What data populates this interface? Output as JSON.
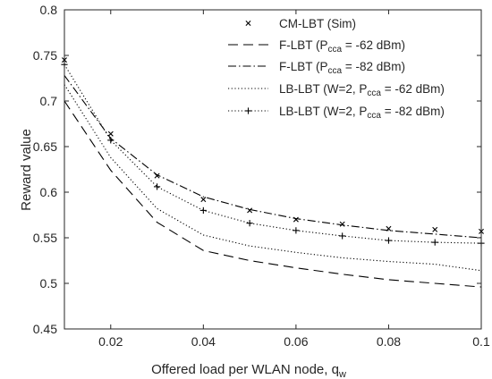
{
  "chart_data": {
    "type": "line",
    "xlabel": "Offered load per WLAN node, q",
    "xlabel_sub": "w",
    "ylabel": "Reward value",
    "xlim": [
      0.01,
      0.1
    ],
    "ylim": [
      0.45,
      0.8
    ],
    "x_ticks": [
      0.02,
      0.04,
      0.06,
      0.08,
      0.1
    ],
    "x_tick_labels": [
      "0.02",
      "0.04",
      "0.06",
      "0.08",
      "0.1"
    ],
    "y_ticks": [
      0.45,
      0.5,
      0.55,
      0.6,
      0.65,
      0.7,
      0.75,
      0.8
    ],
    "y_tick_labels": [
      "0.45",
      "0.5",
      "0.55",
      "0.6",
      "0.65",
      "0.7",
      "0.75",
      "0.8"
    ],
    "grid": false,
    "legend_position": "top-right",
    "series": [
      {
        "legend": [
          "CM-LBT (Sim)"
        ],
        "style": "marker-x",
        "color": "#000000",
        "x": [
          0.01,
          0.02,
          0.03,
          0.04,
          0.05,
          0.06,
          0.07,
          0.08,
          0.09,
          0.1
        ],
        "y": [
          0.745,
          0.664,
          0.618,
          0.592,
          0.58,
          0.57,
          0.565,
          0.56,
          0.559,
          0.557
        ]
      },
      {
        "legend": [
          "F-LBT   (P",
          "cca",
          " = -62 dBm)"
        ],
        "style": "dashed",
        "color": "#000000",
        "x": [
          0.01,
          0.02,
          0.03,
          0.04,
          0.05,
          0.06,
          0.07,
          0.08,
          0.09,
          0.1
        ],
        "y": [
          0.7,
          0.624,
          0.567,
          0.536,
          0.525,
          0.517,
          0.51,
          0.504,
          0.5,
          0.496
        ]
      },
      {
        "legend": [
          "F-LBT   (P",
          "cca",
          " = -82 dBm)"
        ],
        "style": "dashdot",
        "color": "#000000",
        "x": [
          0.01,
          0.02,
          0.03,
          0.04,
          0.05,
          0.06,
          0.07,
          0.08,
          0.09,
          0.1
        ],
        "y": [
          0.728,
          0.659,
          0.619,
          0.595,
          0.581,
          0.571,
          0.564,
          0.558,
          0.554,
          0.55
        ]
      },
      {
        "legend": [
          "LB-LBT (W=2, P",
          "cca",
          " = -62 dBm)"
        ],
        "style": "dotted",
        "color": "#000000",
        "x": [
          0.01,
          0.02,
          0.03,
          0.04,
          0.05,
          0.06,
          0.07,
          0.08,
          0.09,
          0.1
        ],
        "y": [
          0.718,
          0.638,
          0.582,
          0.553,
          0.541,
          0.534,
          0.528,
          0.524,
          0.521,
          0.514
        ]
      },
      {
        "legend": [
          "LB-LBT (W=2, P",
          "cca",
          " = -82 dBm)"
        ],
        "style": "dotted-plus",
        "color": "#000000",
        "x": [
          0.01,
          0.02,
          0.03,
          0.04,
          0.05,
          0.06,
          0.07,
          0.08,
          0.09,
          0.1
        ],
        "y": [
          0.74,
          0.657,
          0.606,
          0.58,
          0.566,
          0.558,
          0.552,
          0.547,
          0.545,
          0.544
        ]
      }
    ]
  }
}
